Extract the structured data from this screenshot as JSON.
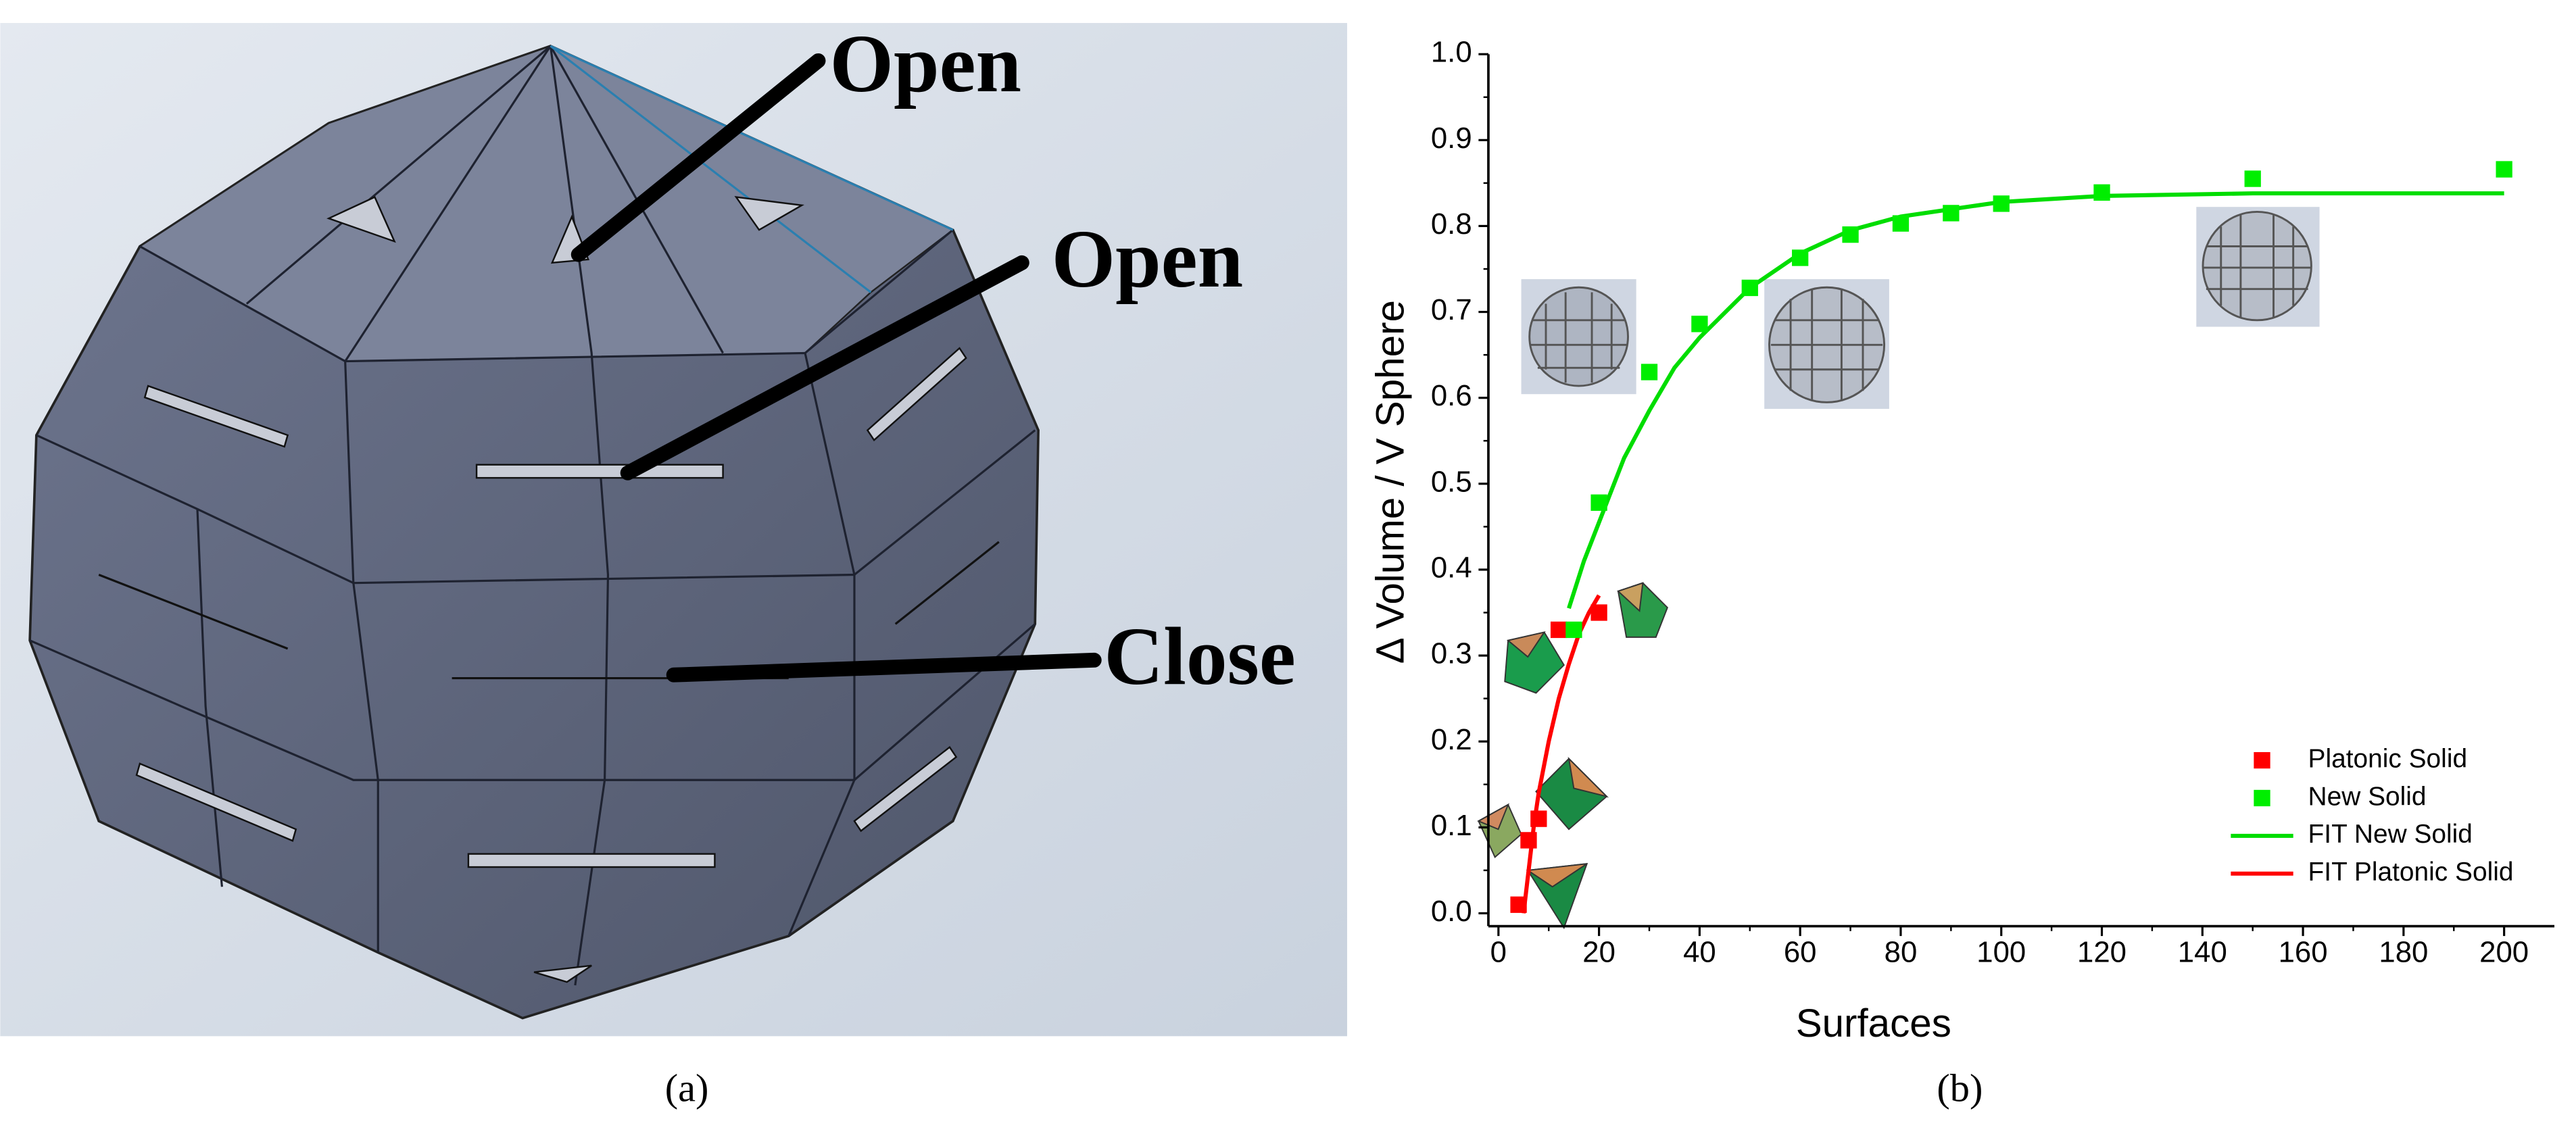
{
  "panel_a": {
    "label": "(a)",
    "annotations": [
      "Open",
      "Open",
      "Close"
    ]
  },
  "chart_data": {
    "type": "scatter",
    "panel_label": "(b)",
    "x_label": "Surfaces",
    "y_label": "Δ Volume / V Sphere",
    "xlim": [
      -2,
      210
    ],
    "xticks": [
      0,
      20,
      40,
      60,
      80,
      100,
      120,
      140,
      160,
      180,
      200
    ],
    "ylim": [
      -0.015,
      1.0
    ],
    "yticks": [
      {
        "value": 0,
        "label": "0.0"
      },
      0.1,
      0.2,
      0.3,
      0.4,
      0.5,
      0.6,
      0.7,
      0.8,
      0.9,
      {
        "value": 1,
        "label": "1.0"
      }
    ],
    "legend": "lower right",
    "series": [
      {
        "name": "Platonic Solid",
        "type": "scatter",
        "color": "#ff0000",
        "x": [
          4,
          6,
          8,
          12,
          20
        ],
        "values": [
          0.01,
          0.085,
          0.11,
          0.33,
          0.35
        ]
      },
      {
        "name": "New Solid",
        "type": "scatter",
        "color": "#00ee00",
        "x": [
          15,
          20,
          30,
          40,
          50,
          60,
          70,
          80,
          90,
          100,
          120,
          150,
          200
        ],
        "values": [
          0.33,
          0.478,
          0.63,
          0.686,
          0.728,
          0.763,
          0.79,
          0.803,
          0.815,
          0.826,
          0.839,
          0.855,
          0.866
        ]
      },
      {
        "name": "FIT New Solid",
        "type": "line",
        "color": "#00dd00",
        "x": [
          14,
          17,
          20,
          25,
          30,
          35,
          40,
          50,
          60,
          70,
          80,
          100,
          120,
          150,
          200
        ],
        "values": [
          0.355,
          0.41,
          0.455,
          0.53,
          0.585,
          0.635,
          0.67,
          0.728,
          0.768,
          0.795,
          0.811,
          0.828,
          0.835,
          0.838,
          0.838
        ]
      },
      {
        "name": "FIT Platonic Solid",
        "type": "line",
        "color": "#ff0000",
        "x": [
          5,
          6,
          7,
          8,
          10,
          12,
          14,
          16,
          18,
          20
        ],
        "values": [
          0.0,
          0.05,
          0.1,
          0.14,
          0.2,
          0.25,
          0.29,
          0.325,
          0.35,
          0.37
        ]
      }
    ]
  }
}
